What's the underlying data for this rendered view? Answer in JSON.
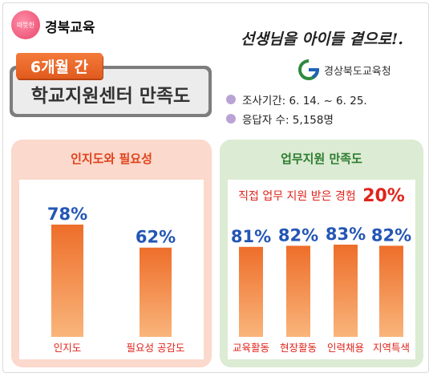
{
  "header": {
    "logo_circle_text": "따뜻한",
    "logo_text": "경북교육",
    "period_badge": "6개월 간",
    "title": "학교지원센터 만족도",
    "slogan": "선생님을 아이들 곁으로!.",
    "org_name": "경상북도교육청",
    "survey_period": "조사기간: 6. 14. ~ 6. 25.",
    "respondents": "응답자 수: 5,158명"
  },
  "colors": {
    "bar_light": "#f9b57b",
    "bar_dark": "#ee6e2a",
    "value_text": "#2456b5",
    "category_text": "#e0241c"
  },
  "chart_data": [
    {
      "type": "bar",
      "title": "인지도와 필요성",
      "categories": [
        "인지도",
        "필요성 공감도"
      ],
      "values": [
        78,
        62
      ],
      "value_labels": [
        "78%",
        "62%"
      ],
      "ylim": [
        0,
        100
      ],
      "grid": false
    },
    {
      "type": "bar",
      "title": "업무지원 만족도",
      "subtitle": "직접 업무 지원 받은 경험",
      "subtitle_value": "20%",
      "categories": [
        "교육활동",
        "현장활동",
        "인력채용",
        "지역특색"
      ],
      "values": [
        81,
        82,
        83,
        82
      ],
      "value_labels": [
        "81%",
        "82%",
        "83%",
        "82%"
      ],
      "ylim": [
        0,
        100
      ],
      "grid": false
    }
  ]
}
